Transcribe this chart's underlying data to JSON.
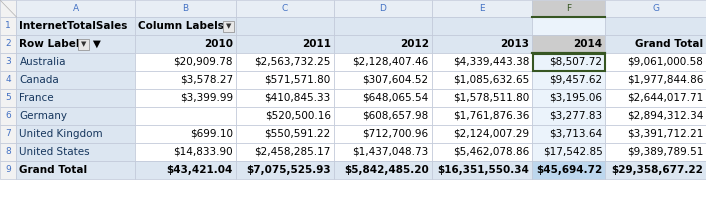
{
  "col_labels": [
    "A",
    "B",
    "C",
    "D",
    "E",
    "F",
    "G"
  ],
  "row1": [
    "InternetTotalSales",
    "Column Labels ▼",
    "",
    "",
    "",
    "",
    ""
  ],
  "row2": [
    "Row Labels  ▼",
    "2010",
    "2011",
    "2012",
    "2013",
    "2014",
    "Grand Total"
  ],
  "rows": [
    [
      "Australia",
      "$20,909.78",
      "$2,563,732.25",
      "$2,128,407.46",
      "$4,339,443.38",
      "$8,507.72",
      "$9,061,000.58"
    ],
    [
      "Canada",
      "$3,578.27",
      "$571,571.80",
      "$307,604.52",
      "$1,085,632.65",
      "$9,457.62",
      "$1,977,844.86"
    ],
    [
      "France",
      "$3,399.99",
      "$410,845.33",
      "$648,065.54",
      "$1,578,511.80",
      "$3,195.06",
      "$2,644,017.71"
    ],
    [
      "Germany",
      "",
      "$520,500.16",
      "$608,657.98",
      "$1,761,876.36",
      "$3,277.83",
      "$2,894,312.34"
    ],
    [
      "United Kingdom",
      "$699.10",
      "$550,591.22",
      "$712,700.96",
      "$2,124,007.29",
      "$3,713.64",
      "$3,391,712.21"
    ],
    [
      "United States",
      "$14,833.90",
      "$2,458,285.17",
      "$1,437,048.73",
      "$5,462,078.86",
      "$17,542.85",
      "$9,389,789.51"
    ]
  ],
  "grand_total": [
    "Grand Total",
    "$43,421.04",
    "$7,075,525.93",
    "$5,842,485.20",
    "$16,351,550.34",
    "$45,694.72",
    "$29,358,677.22"
  ],
  "selected_col_idx": 5,
  "selected_row_idx": 0,
  "header_bg": "#DCE6F1",
  "col_header_selected_bg": "#CCCCCC",
  "col_header_normal_bg": "#E8EEF5",
  "data_bg_white": "#FFFFFF",
  "data_bg_light_blue": "#DCE6F1",
  "selected_col_bg": "#EBF3FB",
  "selected_col_total_bg": "#BDD7EE",
  "grand_total_bg": "#DCE6F1",
  "selected_cell_border": "#375623",
  "grid_color": "#C0C8D8",
  "row_num_bg": "#F2F2F2",
  "row_num_color": "#4472C4",
  "text_black": "#000000",
  "text_blue": "#17375E",
  "font_size": 7.5,
  "font_size_small": 6.5
}
